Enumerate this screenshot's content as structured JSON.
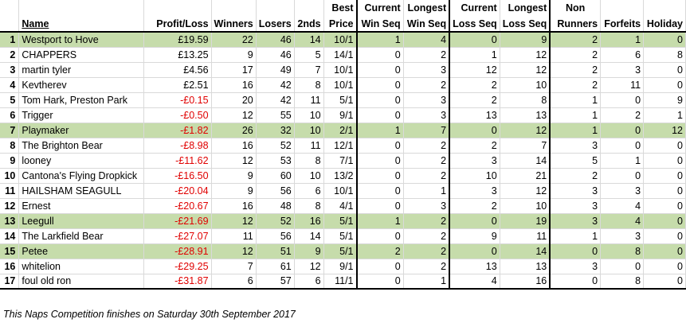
{
  "headers": {
    "rank": "",
    "name": "Name",
    "profit": "Profit/Loss",
    "winners": "Winners",
    "losers": "Losers",
    "seconds": "2nds",
    "best_price": [
      "Best",
      "Price"
    ],
    "current_win_seq": [
      "Current",
      "Win Seq"
    ],
    "longest_win_seq": [
      "Longest",
      "Win Seq"
    ],
    "current_loss_seq": [
      "Current",
      "Loss Seq"
    ],
    "longest_loss_seq": [
      "Longest",
      "Loss Seq"
    ],
    "non_runners": [
      "Non",
      "Runners"
    ],
    "forfeits": "Forfeits",
    "holiday": "Holiday"
  },
  "rows": [
    {
      "rank": "1",
      "name": "Westport to Hove",
      "profit": "£19.59",
      "winners": "22",
      "losers": "46",
      "seconds": "14",
      "best": "10/1",
      "cws": "1",
      "lws": "4",
      "cls": "0",
      "lls": "9",
      "nr": "2",
      "forf": "1",
      "hol": "0",
      "highlight": true,
      "negative": false
    },
    {
      "rank": "2",
      "name": "CHAPPERS",
      "profit": "£13.25",
      "winners": "9",
      "losers": "46",
      "seconds": "5",
      "best": "14/1",
      "cws": "0",
      "lws": "2",
      "cls": "1",
      "lls": "12",
      "nr": "2",
      "forf": "6",
      "hol": "8",
      "highlight": false,
      "negative": false
    },
    {
      "rank": "3",
      "name": "martin tyler",
      "profit": "£4.56",
      "winners": "17",
      "losers": "49",
      "seconds": "7",
      "best": "10/1",
      "cws": "0",
      "lws": "3",
      "cls": "12",
      "lls": "12",
      "nr": "2",
      "forf": "3",
      "hol": "0",
      "highlight": false,
      "negative": false
    },
    {
      "rank": "4",
      "name": "Kevtherev",
      "profit": "£2.51",
      "winners": "16",
      "losers": "42",
      "seconds": "8",
      "best": "10/1",
      "cws": "0",
      "lws": "2",
      "cls": "2",
      "lls": "10",
      "nr": "2",
      "forf": "11",
      "hol": "0",
      "highlight": false,
      "negative": false
    },
    {
      "rank": "5",
      "name": "Tom Hark, Preston Park",
      "profit": "-£0.15",
      "winners": "20",
      "losers": "42",
      "seconds": "11",
      "best": "5/1",
      "cws": "0",
      "lws": "3",
      "cls": "2",
      "lls": "8",
      "nr": "1",
      "forf": "0",
      "hol": "9",
      "highlight": false,
      "negative": true
    },
    {
      "rank": "6",
      "name": "Trigger",
      "profit": "-£0.50",
      "winners": "12",
      "losers": "55",
      "seconds": "10",
      "best": "9/1",
      "cws": "0",
      "lws": "3",
      "cls": "13",
      "lls": "13",
      "nr": "1",
      "forf": "2",
      "hol": "1",
      "highlight": false,
      "negative": true
    },
    {
      "rank": "7",
      "name": "Playmaker",
      "profit": "-£1.82",
      "winners": "26",
      "losers": "32",
      "seconds": "10",
      "best": "2/1",
      "cws": "1",
      "lws": "7",
      "cls": "0",
      "lls": "12",
      "nr": "1",
      "forf": "0",
      "hol": "12",
      "highlight": true,
      "negative": true
    },
    {
      "rank": "8",
      "name": "The Brighton Bear",
      "profit": "-£8.98",
      "winners": "16",
      "losers": "52",
      "seconds": "11",
      "best": "12/1",
      "cws": "0",
      "lws": "2",
      "cls": "2",
      "lls": "7",
      "nr": "3",
      "forf": "0",
      "hol": "0",
      "highlight": false,
      "negative": true
    },
    {
      "rank": "9",
      "name": "looney",
      "profit": "-£11.62",
      "winners": "12",
      "losers": "53",
      "seconds": "8",
      "best": "7/1",
      "cws": "0",
      "lws": "2",
      "cls": "3",
      "lls": "14",
      "nr": "5",
      "forf": "1",
      "hol": "0",
      "highlight": false,
      "negative": true
    },
    {
      "rank": "10",
      "name": "Cantona's Flying Dropkick",
      "profit": "-£16.50",
      "winners": "9",
      "losers": "60",
      "seconds": "10",
      "best": "13/2",
      "cws": "0",
      "lws": "2",
      "cls": "10",
      "lls": "21",
      "nr": "2",
      "forf": "0",
      "hol": "0",
      "highlight": false,
      "negative": true
    },
    {
      "rank": "11",
      "name": "HAILSHAM SEAGULL",
      "profit": "-£20.04",
      "winners": "9",
      "losers": "56",
      "seconds": "6",
      "best": "10/1",
      "cws": "0",
      "lws": "1",
      "cls": "3",
      "lls": "12",
      "nr": "3",
      "forf": "3",
      "hol": "0",
      "highlight": false,
      "negative": true
    },
    {
      "rank": "12",
      "name": "Ernest",
      "profit": "-£20.67",
      "winners": "16",
      "losers": "48",
      "seconds": "8",
      "best": "4/1",
      "cws": "0",
      "lws": "3",
      "cls": "2",
      "lls": "10",
      "nr": "3",
      "forf": "4",
      "hol": "0",
      "highlight": false,
      "negative": true
    },
    {
      "rank": "13",
      "name": "Leegull",
      "profit": "-£21.69",
      "winners": "12",
      "losers": "52",
      "seconds": "16",
      "best": "5/1",
      "cws": "1",
      "lws": "2",
      "cls": "0",
      "lls": "19",
      "nr": "3",
      "forf": "4",
      "hol": "0",
      "highlight": true,
      "negative": true
    },
    {
      "rank": "14",
      "name": "The Larkfield Bear",
      "profit": "-£27.07",
      "winners": "11",
      "losers": "56",
      "seconds": "14",
      "best": "5/1",
      "cws": "0",
      "lws": "2",
      "cls": "9",
      "lls": "11",
      "nr": "1",
      "forf": "3",
      "hol": "0",
      "highlight": false,
      "negative": true
    },
    {
      "rank": "15",
      "name": "Petee",
      "profit": "-£28.91",
      "winners": "12",
      "losers": "51",
      "seconds": "9",
      "best": "5/1",
      "cws": "2",
      "lws": "2",
      "cls": "0",
      "lls": "14",
      "nr": "0",
      "forf": "8",
      "hol": "0",
      "highlight": true,
      "negative": true
    },
    {
      "rank": "16",
      "name": "whitelion",
      "profit": "-£29.25",
      "winners": "7",
      "losers": "61",
      "seconds": "12",
      "best": "9/1",
      "cws": "0",
      "lws": "2",
      "cls": "13",
      "lls": "13",
      "nr": "3",
      "forf": "0",
      "hol": "0",
      "highlight": false,
      "negative": true
    },
    {
      "rank": "17",
      "name": "foul old ron",
      "profit": "-£31.87",
      "winners": "6",
      "losers": "57",
      "seconds": "6",
      "best": "11/1",
      "cws": "0",
      "lws": "1",
      "cls": "4",
      "lls": "16",
      "nr": "0",
      "forf": "8",
      "hol": "0",
      "highlight": false,
      "negative": true
    }
  ],
  "footer": "This Naps Competition finishes on Saturday 30th September 2017",
  "colors": {
    "highlight": "#c6dcab",
    "negative": "#e00000"
  }
}
